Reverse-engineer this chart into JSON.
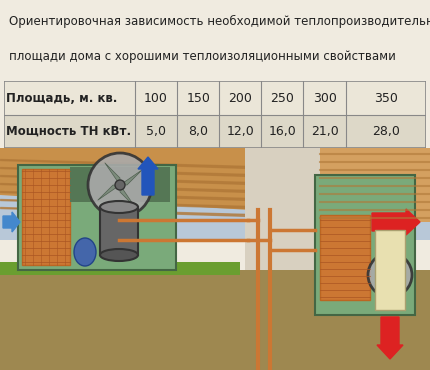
{
  "title_line1": "Ориентировочная зависимость необходимой теплопроизводительности ТН от",
  "title_line2": "площади дома с хорошими теплоизоляционными свойствами",
  "table_headers": [
    "Площадь, м. кв.",
    "100",
    "150",
    "200",
    "250",
    "300",
    "350"
  ],
  "table_row2_label": "Мощность ТН кВт.",
  "table_row2_values": [
    "5,0",
    "8,0",
    "12,0",
    "16,0",
    "21,0",
    "28,0"
  ],
  "bg_color": "#f0ebe0",
  "title_fontsize": 8.5,
  "table_fontsize": 9.0,
  "border_color": "#999999",
  "text_color": "#222222"
}
